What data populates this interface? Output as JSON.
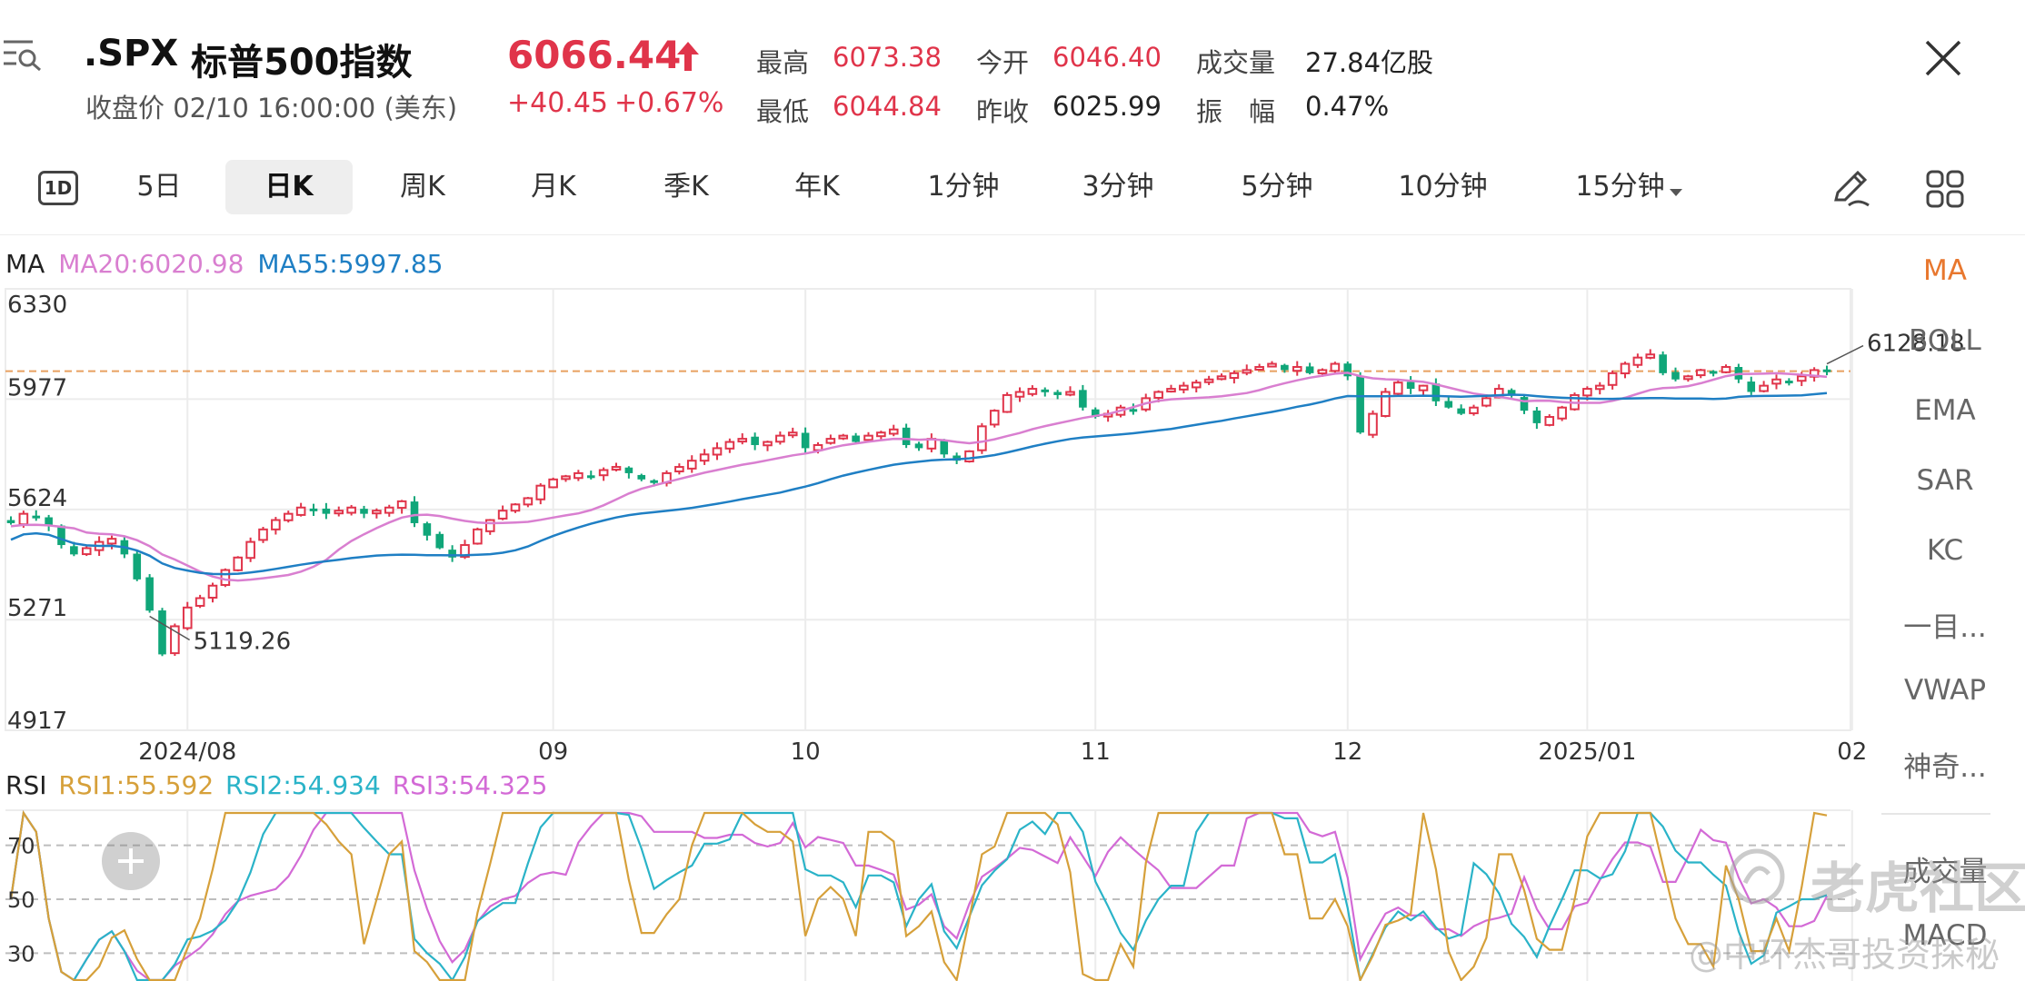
{
  "header": {
    "symbol": ".SPX",
    "name": "标普500指数",
    "price": "6066.44",
    "status_line": "收盘价 02/10 16:00:00 (美东)",
    "change": "+40.45",
    "change_pct": "+0.67%",
    "stats": [
      {
        "label": "最高",
        "value": "6073.38",
        "red": true
      },
      {
        "label": "今开",
        "value": "6046.40",
        "red": true
      },
      {
        "label": "成交量",
        "value": "27.84亿股",
        "red": false
      },
      {
        "label": "最低",
        "value": "6044.84",
        "red": true
      },
      {
        "label": "昨收",
        "value": "6025.99",
        "red": false
      },
      {
        "label": "振　幅",
        "value": "0.47%",
        "red": false
      }
    ]
  },
  "tabs": [
    "1D",
    "5日",
    "日K",
    "周K",
    "月K",
    "季K",
    "年K",
    "1分钟",
    "3分钟",
    "5分钟",
    "10分钟",
    "15分钟"
  ],
  "active_tab": "日K",
  "side_indicators": [
    "MA",
    "BOLL",
    "EMA",
    "SAR",
    "KC",
    "一目...",
    "VWAP",
    "神奇...",
    "成交量",
    "MACD"
  ],
  "active_indicator": "MA",
  "watermark": {
    "brand": "老虎社区",
    "author": "@中环杰哥投资探秘"
  },
  "colors": {
    "up": "#e0344a",
    "down": "#10a679",
    "ma20": "#d97fd0",
    "ma55": "#1f7fc4",
    "rsi1": "#d6a03a",
    "rsi2": "#2ab3c8",
    "rsi3": "#d36ad6",
    "ref": "#e8a060"
  },
  "chart_data": [
    {
      "type": "candlestick",
      "indicator_label": "MA",
      "legend": [
        {
          "name": "MA20",
          "value": "6020.98"
        },
        {
          "name": "MA55",
          "value": "5997.85"
        }
      ],
      "y_ticks": [
        6330,
        5977,
        5624,
        5271,
        4917
      ],
      "ylim": [
        4917,
        6330
      ],
      "x_ticks": [
        "2024/08",
        "09",
        "10",
        "11",
        "12",
        "2025/01",
        "02"
      ],
      "x_tick_index": [
        14,
        43,
        63,
        86,
        106,
        125,
        146
      ],
      "reference_line": 6066.44,
      "annotations": [
        {
          "text": "6128.18",
          "index": 144
        },
        {
          "text": "5119.26",
          "index": 11
        }
      ],
      "close": [
        5580,
        5610,
        5600,
        5570,
        5510,
        5480,
        5500,
        5520,
        5530,
        5480,
        5400,
        5300,
        5160,
        5250,
        5310,
        5340,
        5380,
        5430,
        5470,
        5520,
        5560,
        5590,
        5610,
        5630,
        5620,
        5610,
        5620,
        5630,
        5610,
        5620,
        5630,
        5650,
        5580,
        5540,
        5500,
        5470,
        5510,
        5560,
        5590,
        5620,
        5640,
        5660,
        5700,
        5720,
        5730,
        5740,
        5730,
        5750,
        5760,
        5740,
        5720,
        5710,
        5740,
        5760,
        5780,
        5800,
        5820,
        5840,
        5850,
        5830,
        5840,
        5860,
        5870,
        5820,
        5830,
        5850,
        5860,
        5840,
        5860,
        5870,
        5880,
        5830,
        5820,
        5850,
        5800,
        5780,
        5810,
        5890,
        5940,
        5990,
        6000,
        6010,
        6000,
        5990,
        6000,
        5950,
        5920,
        5930,
        5950,
        5940,
        5980,
        6000,
        6010,
        6020,
        6030,
        6040,
        6050,
        6060,
        6070,
        6080,
        6090,
        6070,
        6080,
        6060,
        6070,
        6090,
        6050,
        5870,
        5930,
        6000,
        6030,
        6010,
        6020,
        5970,
        5950,
        5930,
        5950,
        5980,
        6010,
        5990,
        5940,
        5900,
        5920,
        5950,
        5990,
        6010,
        6020,
        6060,
        6090,
        6110,
        6120,
        6060,
        6040,
        6050,
        6070,
        6060,
        6080,
        6040,
        6000,
        6020,
        6040,
        6030,
        6050,
        6070,
        6066
      ],
      "rsi": {
        "label": "RSI",
        "legend": [
          {
            "name": "RSI1",
            "value": "55.592"
          },
          {
            "name": "RSI2",
            "value": "54.934"
          },
          {
            "name": "RSI3",
            "value": "54.325"
          }
        ],
        "y_ticks": [
          70,
          50,
          30
        ],
        "ylim": [
          19,
          83
        ]
      }
    }
  ]
}
